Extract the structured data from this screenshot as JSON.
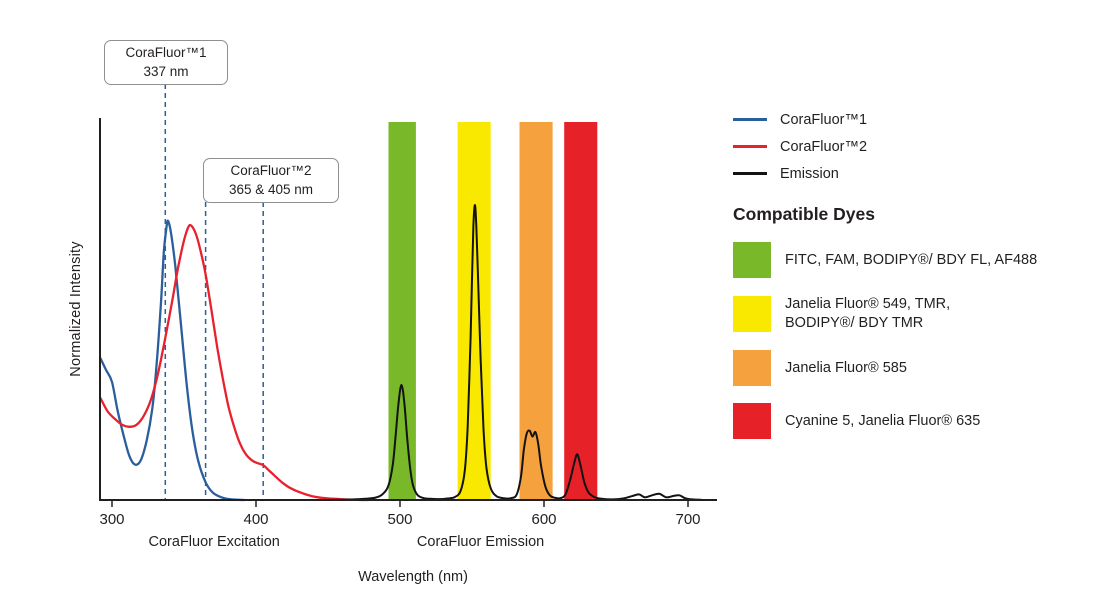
{
  "chart_data": {
    "type": "line",
    "title": "",
    "xlabel": "Wavelength (nm)",
    "ylabel": "Normalized Intensity",
    "x_axis": {
      "min": 292,
      "max": 720,
      "ticks": [
        300,
        400,
        500,
        600,
        700
      ]
    },
    "y_axis": {
      "min": 0,
      "max": 1
    },
    "grid": false,
    "legend_position": "right",
    "section_labels": [
      {
        "text": "CoraFluor Excitation",
        "center_nm": 371
      },
      {
        "text": "CoraFluor Emission",
        "center_nm": 556
      }
    ],
    "annotations": [
      {
        "line1": "CoraFluor™1",
        "line2": "337 nm",
        "marker_lines_nm": [
          337
        ]
      },
      {
        "line1": "CoraFluor™2",
        "line2": "365 & 405 nm",
        "marker_lines_nm": [
          365,
          405
        ]
      }
    ],
    "bands": [
      {
        "name": "FITC, FAM, BODIPY®/ BDY FL, AF488",
        "range_nm": [
          492,
          511
        ],
        "color": "#79b829"
      },
      {
        "name": "Janelia Fluor® 549, TMR, BODIPY®/ BDY TMR",
        "range_nm": [
          540,
          563
        ],
        "color": "#f9e900"
      },
      {
        "name": "Janelia Fluor® 585",
        "range_nm": [
          583,
          606
        ],
        "color": "#f5a13d"
      },
      {
        "name": "Cyanine 5, Janelia Fluor® 635",
        "range_nm": [
          614,
          637
        ],
        "color": "#e62128"
      }
    ],
    "series": [
      {
        "name": "CoraFluor™1",
        "color": "#2a5e9c",
        "points": [
          [
            292,
            0.48
          ],
          [
            296,
            0.44
          ],
          [
            300,
            0.4
          ],
          [
            304,
            0.3
          ],
          [
            308,
            0.22
          ],
          [
            312,
            0.15
          ],
          [
            316,
            0.12
          ],
          [
            320,
            0.135
          ],
          [
            324,
            0.2
          ],
          [
            328,
            0.31
          ],
          [
            331,
            0.46
          ],
          [
            334,
            0.67
          ],
          [
            336,
            0.84
          ],
          [
            338,
            0.93
          ],
          [
            339,
            0.945
          ],
          [
            341,
            0.905
          ],
          [
            344,
            0.79
          ],
          [
            348,
            0.59
          ],
          [
            352,
            0.385
          ],
          [
            356,
            0.23
          ],
          [
            360,
            0.13
          ],
          [
            365,
            0.06
          ],
          [
            370,
            0.025
          ],
          [
            376,
            0.009
          ],
          [
            383,
            0.002
          ],
          [
            392,
            0
          ]
        ]
      },
      {
        "name": "CoraFluor™2",
        "color": "#e8212d",
        "points": [
          [
            292,
            0.345
          ],
          [
            297,
            0.3
          ],
          [
            302,
            0.275
          ],
          [
            307,
            0.255
          ],
          [
            312,
            0.248
          ],
          [
            317,
            0.255
          ],
          [
            322,
            0.285
          ],
          [
            327,
            0.34
          ],
          [
            332,
            0.43
          ],
          [
            337,
            0.55
          ],
          [
            342,
            0.68
          ],
          [
            346,
            0.79
          ],
          [
            350,
            0.88
          ],
          [
            353,
            0.925
          ],
          [
            355,
            0.93
          ],
          [
            358,
            0.905
          ],
          [
            361,
            0.855
          ],
          [
            365,
            0.765
          ],
          [
            369,
            0.645
          ],
          [
            373,
            0.52
          ],
          [
            377,
            0.41
          ],
          [
            381,
            0.315
          ],
          [
            385,
            0.245
          ],
          [
            389,
            0.19
          ],
          [
            393,
            0.155
          ],
          [
            397,
            0.135
          ],
          [
            401,
            0.125
          ],
          [
            405,
            0.118
          ],
          [
            409,
            0.1
          ],
          [
            413,
            0.082
          ],
          [
            418,
            0.06
          ],
          [
            424,
            0.04
          ],
          [
            431,
            0.025
          ],
          [
            439,
            0.013
          ],
          [
            448,
            0.006
          ],
          [
            458,
            0.003
          ],
          [
            468,
            0.001
          ],
          [
            478,
            0
          ]
        ]
      },
      {
        "name": "Emission",
        "color": "#131313",
        "points": [
          [
            446,
            0
          ],
          [
            458,
            0.001
          ],
          [
            468,
            0.002
          ],
          [
            476,
            0.004
          ],
          [
            483,
            0.008
          ],
          [
            488,
            0.02
          ],
          [
            492,
            0.05
          ],
          [
            495,
            0.12
          ],
          [
            497,
            0.22
          ],
          [
            499,
            0.33
          ],
          [
            501,
            0.39
          ],
          [
            503,
            0.33
          ],
          [
            505,
            0.21
          ],
          [
            507,
            0.11
          ],
          [
            509,
            0.05
          ],
          [
            512,
            0.018
          ],
          [
            516,
            0.007
          ],
          [
            521,
            0.004
          ],
          [
            527,
            0.003
          ],
          [
            533,
            0.005
          ],
          [
            538,
            0.01
          ],
          [
            542,
            0.03
          ],
          [
            545,
            0.1
          ],
          [
            547,
            0.25
          ],
          [
            549,
            0.55
          ],
          [
            550,
            0.75
          ],
          [
            551,
            0.93
          ],
          [
            552,
            1.0
          ],
          [
            553,
            0.93
          ],
          [
            554,
            0.78
          ],
          [
            556,
            0.48
          ],
          [
            558,
            0.24
          ],
          [
            560,
            0.11
          ],
          [
            563,
            0.04
          ],
          [
            567,
            0.013
          ],
          [
            572,
            0.006
          ],
          [
            577,
            0.006
          ],
          [
            581,
            0.018
          ],
          [
            584,
            0.08
          ],
          [
            586,
            0.17
          ],
          [
            588,
            0.225
          ],
          [
            590,
            0.235
          ],
          [
            592,
            0.215
          ],
          [
            594,
            0.23
          ],
          [
            596,
            0.19
          ],
          [
            598,
            0.115
          ],
          [
            601,
            0.045
          ],
          [
            604,
            0.016
          ],
          [
            608,
            0.007
          ],
          [
            612,
            0.007
          ],
          [
            615,
            0.02
          ],
          [
            618,
            0.065
          ],
          [
            621,
            0.125
          ],
          [
            623,
            0.155
          ],
          [
            625,
            0.125
          ],
          [
            628,
            0.06
          ],
          [
            631,
            0.025
          ],
          [
            635,
            0.01
          ],
          [
            640,
            0.004
          ],
          [
            648,
            0.002
          ],
          [
            655,
            0.005
          ],
          [
            661,
            0.013
          ],
          [
            666,
            0.019
          ],
          [
            670,
            0.009
          ],
          [
            675,
            0.016
          ],
          [
            680,
            0.021
          ],
          [
            685,
            0.009
          ],
          [
            690,
            0.014
          ],
          [
            694,
            0.016
          ],
          [
            698,
            0.006
          ],
          [
            703,
            0.002
          ],
          [
            709,
            0.001
          ]
        ]
      }
    ]
  },
  "legend": {
    "lines": [
      {
        "label": "CoraFluor™1",
        "color": "#2a5e9c"
      },
      {
        "label": "CoraFluor™2",
        "color": "#e8212d"
      },
      {
        "label": "Emission",
        "color": "#131313"
      }
    ],
    "heading": "Compatible Dyes",
    "dyes": [
      {
        "color": "#79b829",
        "line1": "FITC, FAM, BODIPY®/ BDY FL, AF488",
        "line2": ""
      },
      {
        "color": "#f9e900",
        "line1": "Janelia Fluor® 549, TMR,",
        "line2": "BODIPY®/ BDY TMR"
      },
      {
        "color": "#f5a13d",
        "line1": "Janelia Fluor® 585",
        "line2": ""
      },
      {
        "color": "#e62128",
        "line1": "Cyanine 5, Janelia Fluor® 635",
        "line2": ""
      }
    ]
  }
}
